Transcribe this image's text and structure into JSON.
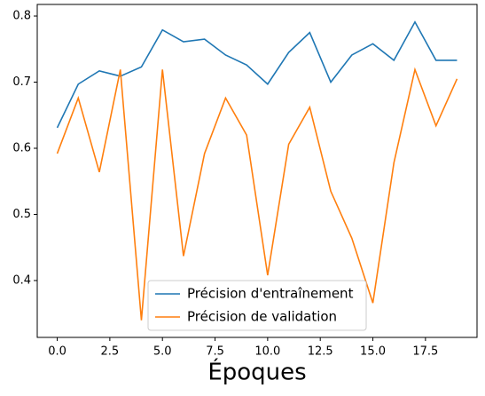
{
  "chart_data": {
    "type": "line",
    "x": [
      0,
      1,
      2,
      3,
      4,
      5,
      6,
      7,
      8,
      9,
      10,
      11,
      12,
      13,
      14,
      15,
      16,
      17,
      18,
      19
    ],
    "series": [
      {
        "name": "Précision d'entraînement",
        "color": "#1f77b4",
        "values": [
          0.631,
          0.697,
          0.717,
          0.709,
          0.723,
          0.779,
          0.761,
          0.765,
          0.741,
          0.726,
          0.697,
          0.745,
          0.775,
          0.7,
          0.741,
          0.758,
          0.733,
          0.791,
          0.733,
          0.733
        ]
      },
      {
        "name": "Précision de validation",
        "color": "#ff7f0e",
        "values": [
          0.592,
          0.676,
          0.564,
          0.719,
          0.34,
          0.719,
          0.437,
          0.592,
          0.676,
          0.62,
          0.408,
          0.606,
          0.662,
          0.535,
          0.464,
          0.366,
          0.578,
          0.719,
          0.634,
          0.705
        ]
      }
    ],
    "xlabel": "Époques",
    "xlim": [
      -0.95,
      19.95
    ],
    "xticks": [
      {
        "value": 0,
        "label": "0.0"
      },
      2.5,
      {
        "value": 5,
        "label": "5.0"
      },
      7.5,
      {
        "value": 10,
        "label": "10.0"
      },
      12.5,
      {
        "value": 15,
        "label": "15.0"
      },
      17.5
    ],
    "ylim": [
      0.314,
      0.8175
    ],
    "yticks": [
      0.4,
      0.5,
      0.6,
      0.7,
      0.8
    ],
    "legend": "lower center",
    "grid": false
  }
}
